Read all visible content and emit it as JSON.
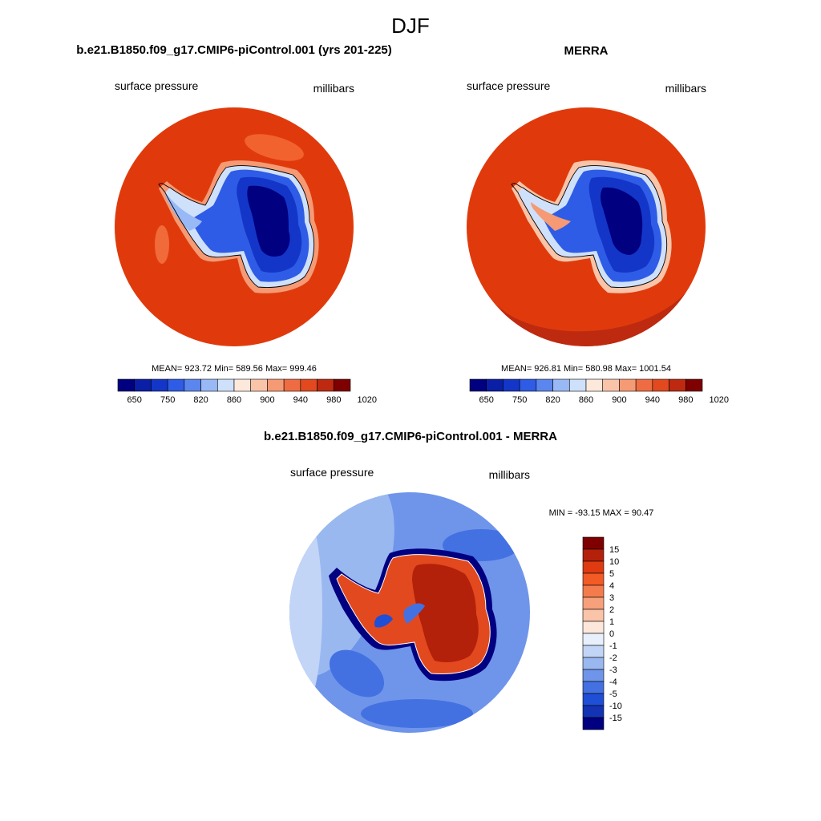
{
  "figure": {
    "title": "DJF"
  },
  "panels": [
    {
      "id": "model",
      "title": "b.e21.B1850.f09_g17.CMIP6-piControl.001 (yrs 201-225)",
      "left_label": "surface pressure",
      "right_label": "millibars",
      "stats": "MEAN= 923.72  Min= 589.56  Max= 999.46"
    },
    {
      "id": "obs",
      "title": "MERRA",
      "left_label": "surface pressure",
      "right_label": "millibars",
      "stats": "MEAN= 926.81  Min= 580.98  Max= 1001.54"
    },
    {
      "id": "diff",
      "title": "b.e21.B1850.f09_g17.CMIP6-piControl.001 - MERRA",
      "left_label": "surface pressure",
      "right_label": "millibars",
      "stats": "MIN = -93.15 MAX =  90.47"
    }
  ],
  "colorbar_abs": {
    "colors": [
      "#000080",
      "#0b1ea6",
      "#1436c8",
      "#2e5ce6",
      "#5a86ee",
      "#98b9f5",
      "#cfe0fa",
      "#fde9dc",
      "#f9c4a8",
      "#f59a74",
      "#ef6c42",
      "#e2491f",
      "#bd2a10",
      "#7f0000"
    ],
    "tick_labels": [
      "650",
      "750",
      "820",
      "860",
      "900",
      "940",
      "980",
      "1020"
    ]
  },
  "colorbar_diff": {
    "colors": [
      "#7f0000",
      "#b3210b",
      "#df3a12",
      "#f25a26",
      "#f47c4c",
      "#f7a07c",
      "#f9c4a8",
      "#fde7db",
      "#e8f0fb",
      "#c3d5f6",
      "#9ab8f0",
      "#6f95ea",
      "#4471e2",
      "#1f4fd6",
      "#1333b4",
      "#000080"
    ],
    "tick_labels": [
      "15",
      "10",
      "5",
      "4",
      "3",
      "2",
      "1",
      "0",
      "-1",
      "-2",
      "-3",
      "-4",
      "-5",
      "-10",
      "-15"
    ]
  },
  "maps": {
    "ocean_color": "#e03a0c",
    "diff_ocean_color": "#5b8ee8",
    "coast_color": "#000000"
  }
}
